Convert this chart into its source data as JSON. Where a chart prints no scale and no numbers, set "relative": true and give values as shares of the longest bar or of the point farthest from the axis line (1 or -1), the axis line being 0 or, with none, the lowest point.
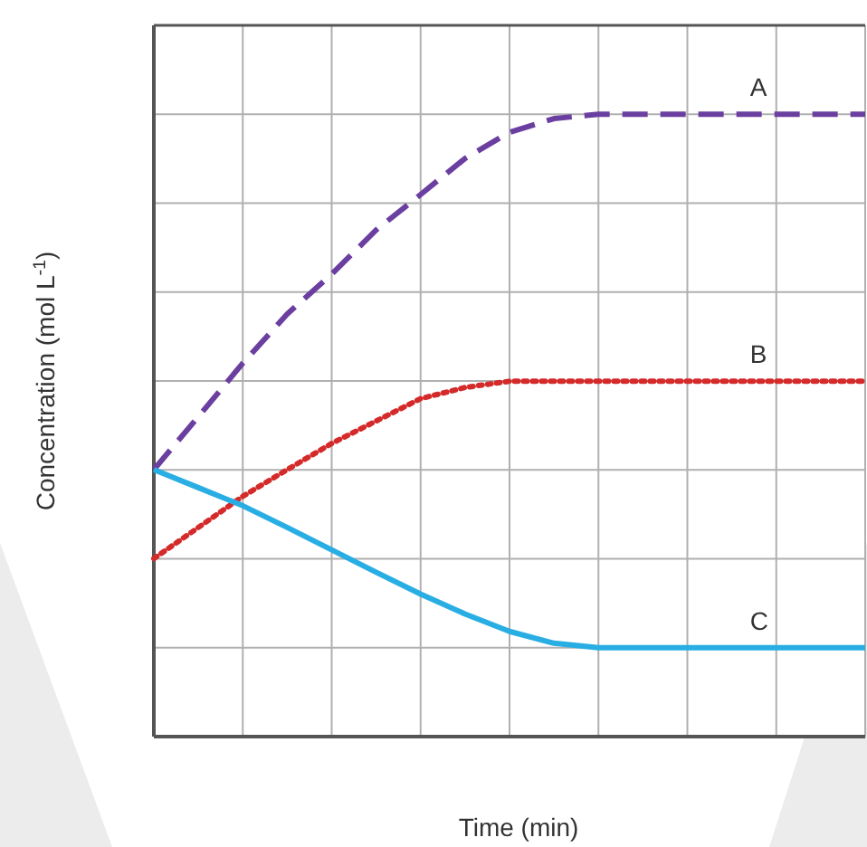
{
  "chart_data": {
    "type": "line",
    "relative": true,
    "xlabel": "Time (min)",
    "ylabel": "Concentration (mol L$^{-1}$)",
    "grid": true,
    "categories": [
      null,
      null,
      null,
      null,
      null,
      null,
      null,
      null,
      null,
      null,
      null,
      null,
      null,
      null,
      null,
      null,
      null
    ],
    "series": [
      {
        "name": "A",
        "color": "#6b3fa0",
        "line_style": "dashed",
        "values": [
          0.429,
          0.514,
          0.6,
          0.679,
          0.743,
          0.814,
          0.871,
          0.929,
          0.971,
          0.993,
          1,
          1,
          1,
          1,
          1,
          1,
          1
        ]
      },
      {
        "name": "B",
        "color": "#d42a2a",
        "line_style": "dotted",
        "values": [
          0.286,
          0.336,
          0.386,
          0.429,
          0.471,
          0.507,
          0.543,
          0.561,
          0.571,
          0.571,
          0.571,
          0.571,
          0.571,
          0.571,
          0.571,
          0.571,
          0.571
        ]
      },
      {
        "name": "C",
        "color": "#29aee3",
        "line_style": "solid",
        "values": [
          0.429,
          0.4,
          0.371,
          0.336,
          0.3,
          0.264,
          0.229,
          0.197,
          0.169,
          0.15,
          0.143,
          0.143,
          0.143,
          0.143,
          0.143,
          0.143,
          0.143
        ]
      }
    ]
  }
}
